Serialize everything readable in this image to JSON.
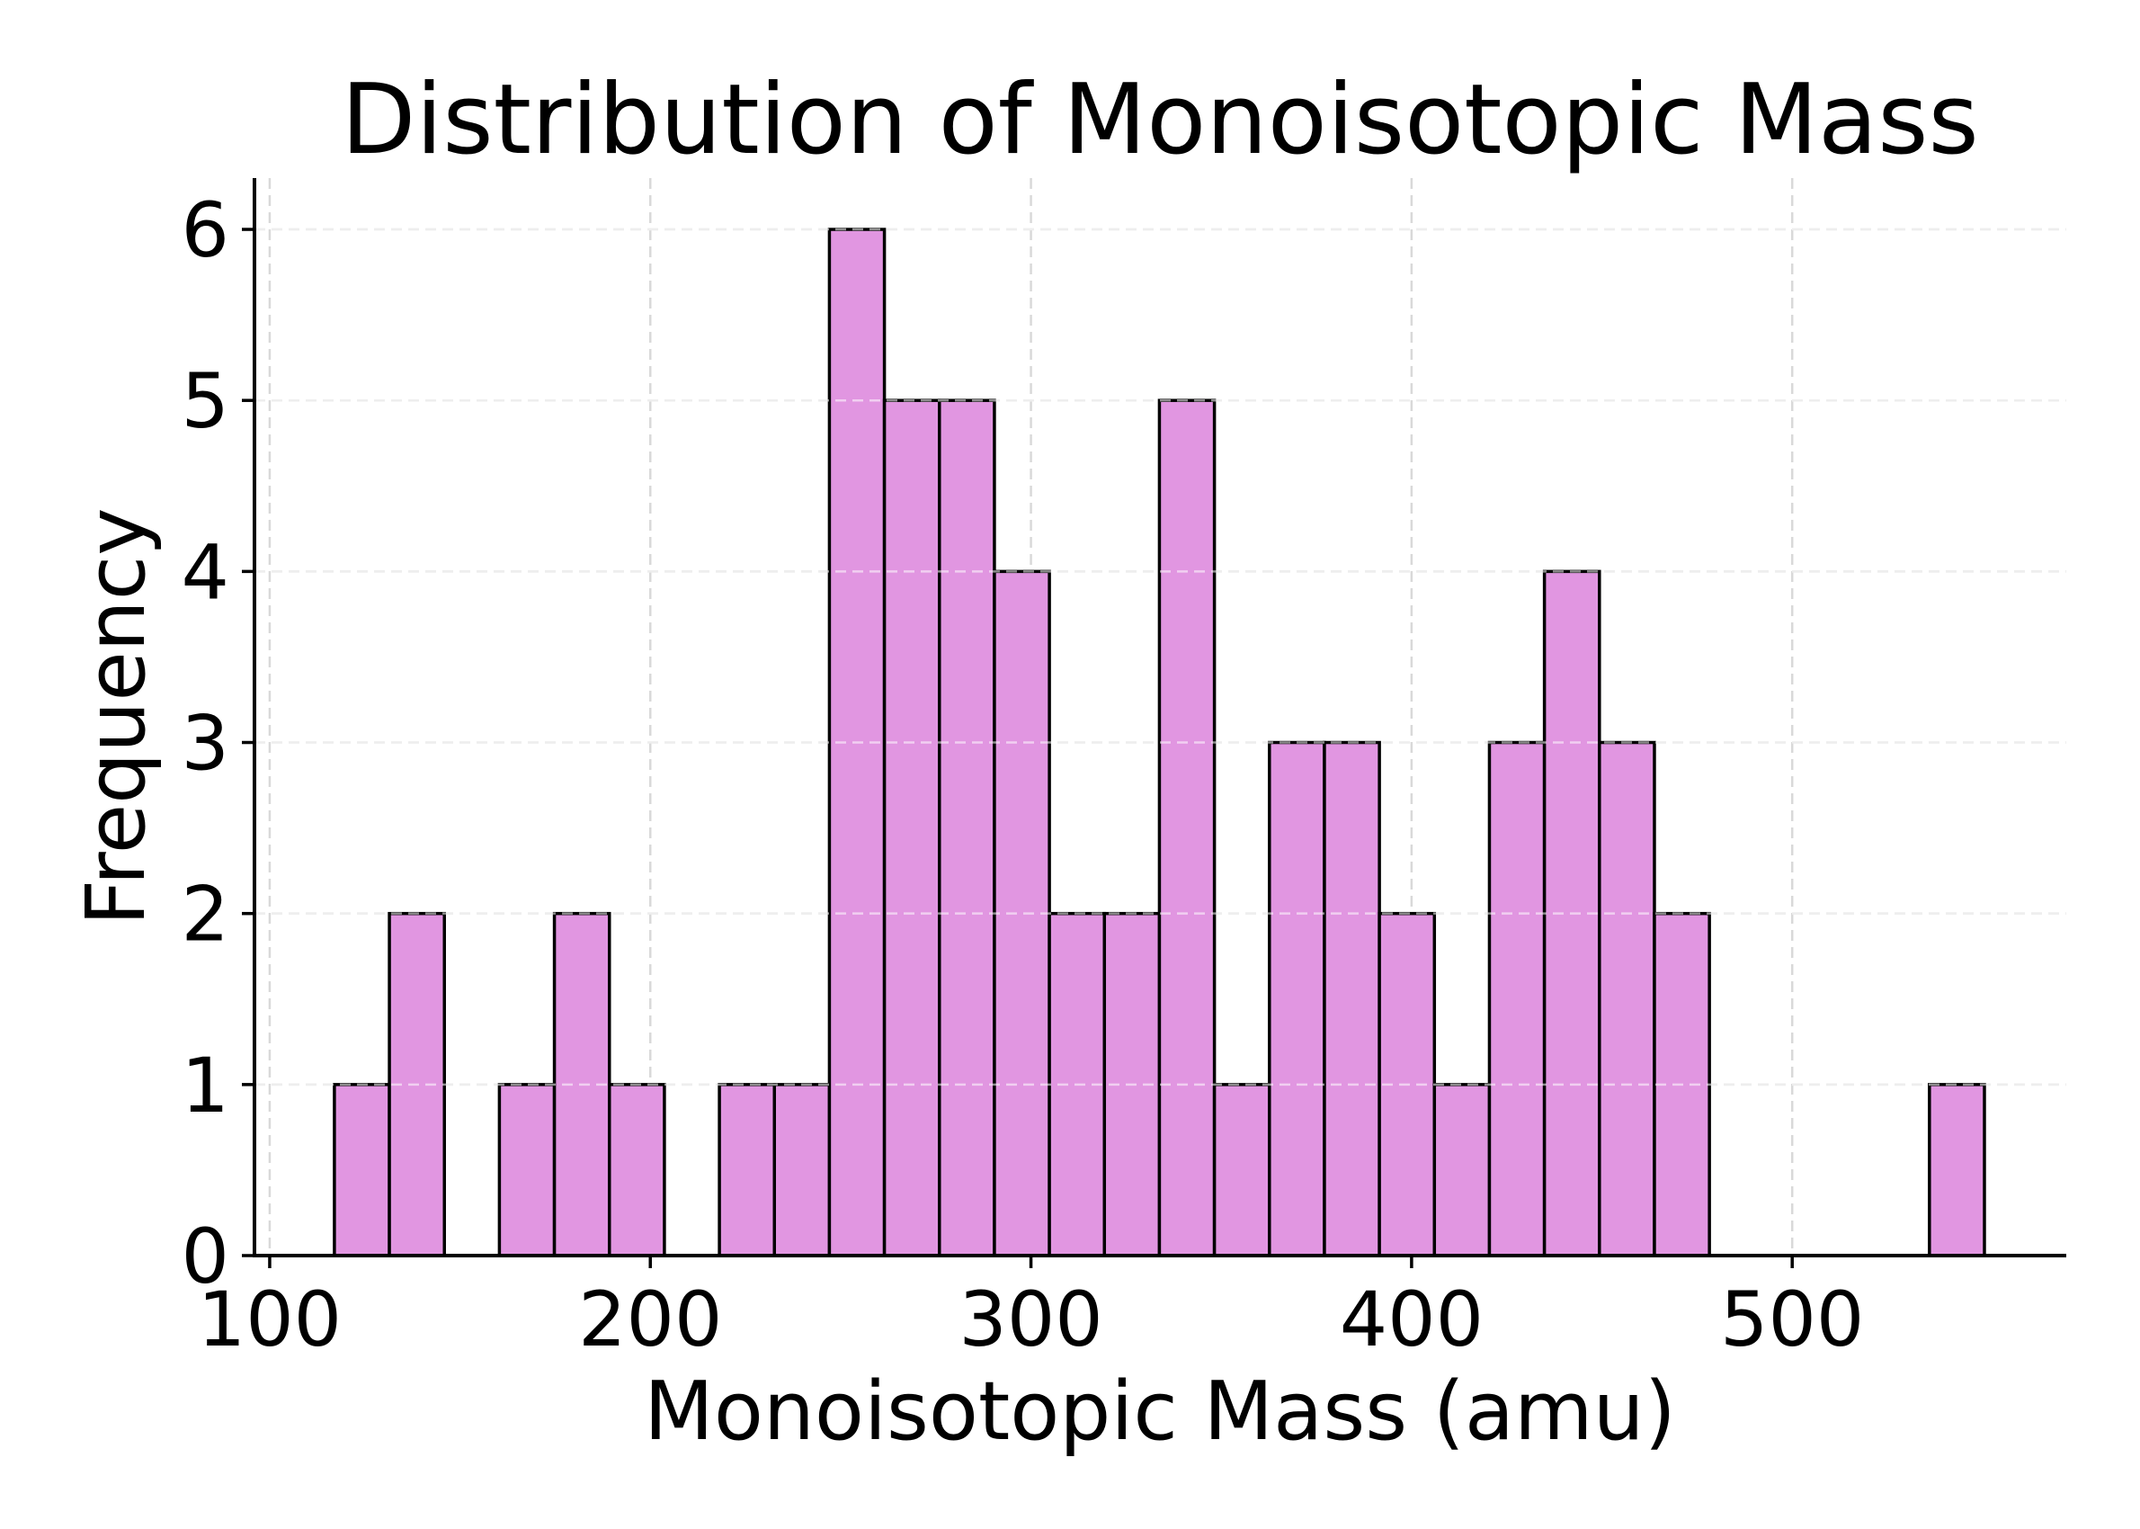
{
  "chart_data": {
    "type": "bar",
    "title": "Distribution of Monoisotopic Mass",
    "xlabel": "Monoisotopic Mass (amu)",
    "ylabel": "Frequency",
    "xlim": [
      96,
      572
    ],
    "ylim": [
      0,
      6.3
    ],
    "xticks": [
      100,
      200,
      300,
      400,
      500
    ],
    "yticks": [
      0,
      1,
      2,
      3,
      4,
      5,
      6
    ],
    "grid": true,
    "legend": "none",
    "colors": {
      "bar_fill": "#e196e1",
      "bar_edge": "#000000",
      "grid": "#d9d9d9",
      "axis": "#000000"
    },
    "bin_width": 14.45,
    "bins": [
      {
        "start": 117.0,
        "count": 1
      },
      {
        "start": 131.45,
        "count": 2
      },
      {
        "start": 145.9,
        "count": 0
      },
      {
        "start": 160.35,
        "count": 1
      },
      {
        "start": 174.8,
        "count": 2
      },
      {
        "start": 189.25,
        "count": 1
      },
      {
        "start": 203.7,
        "count": 0
      },
      {
        "start": 218.15,
        "count": 1
      },
      {
        "start": 232.6,
        "count": 1
      },
      {
        "start": 247.05,
        "count": 6
      },
      {
        "start": 261.5,
        "count": 5
      },
      {
        "start": 275.95,
        "count": 5
      },
      {
        "start": 290.4,
        "count": 4
      },
      {
        "start": 304.85,
        "count": 2
      },
      {
        "start": 319.3,
        "count": 2
      },
      {
        "start": 333.75,
        "count": 5
      },
      {
        "start": 348.2,
        "count": 1
      },
      {
        "start": 362.65,
        "count": 3
      },
      {
        "start": 377.1,
        "count": 3
      },
      {
        "start": 391.55,
        "count": 2
      },
      {
        "start": 406.0,
        "count": 1
      },
      {
        "start": 420.45,
        "count": 3
      },
      {
        "start": 434.9,
        "count": 4
      },
      {
        "start": 449.35,
        "count": 3
      },
      {
        "start": 463.8,
        "count": 2
      },
      {
        "start": 478.25,
        "count": 0
      },
      {
        "start": 492.7,
        "count": 0
      },
      {
        "start": 507.15,
        "count": 0
      },
      {
        "start": 521.6,
        "count": 0
      },
      {
        "start": 536.05,
        "count": 1
      }
    ]
  }
}
